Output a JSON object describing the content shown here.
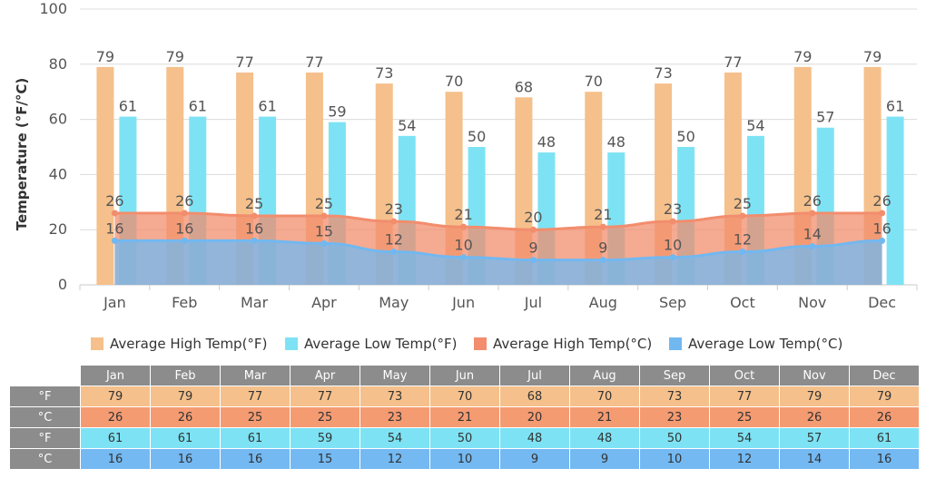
{
  "chart_data": {
    "type": "bar",
    "ylabel": "Temperature (°F/°C)",
    "ylim": [
      0,
      100
    ],
    "yticks": [
      0,
      20,
      40,
      60,
      80,
      100
    ],
    "grid": true,
    "legend_position": "bottom",
    "categories": [
      "Jan",
      "Feb",
      "Mar",
      "Apr",
      "May",
      "Jun",
      "Jul",
      "Aug",
      "Sep",
      "Oct",
      "Nov",
      "Dec"
    ],
    "series": [
      {
        "name": "Average High Temp(°F)",
        "kind": "bar",
        "color": "#f5c08b",
        "row_color": "#f5c08b",
        "row_label": "°F",
        "values": [
          79,
          79,
          77,
          77,
          73,
          70,
          68,
          70,
          73,
          77,
          79,
          79
        ]
      },
      {
        "name": "Average Low Temp(°F)",
        "kind": "bar",
        "color": "#7de3f4",
        "row_color": "#7de3f4",
        "row_label": "°F",
        "values": [
          61,
          61,
          61,
          59,
          54,
          50,
          48,
          48,
          50,
          54,
          57,
          61
        ]
      },
      {
        "name": "Average High Temp(°C)",
        "kind": "area",
        "color": "#f28d6d",
        "row_color": "#f59b72",
        "row_label": "°C",
        "values": [
          26,
          26,
          25,
          25,
          23,
          21,
          20,
          21,
          23,
          25,
          26,
          26
        ]
      },
      {
        "name": "Average Low Temp(°C)",
        "kind": "area",
        "color": "#72b8f0",
        "row_color": "#74b9f2",
        "row_label": "°C",
        "values": [
          16,
          16,
          16,
          15,
          12,
          10,
          9,
          9,
          10,
          12,
          14,
          16
        ]
      }
    ],
    "table_row_order": [
      0,
      2,
      1,
      3
    ]
  }
}
